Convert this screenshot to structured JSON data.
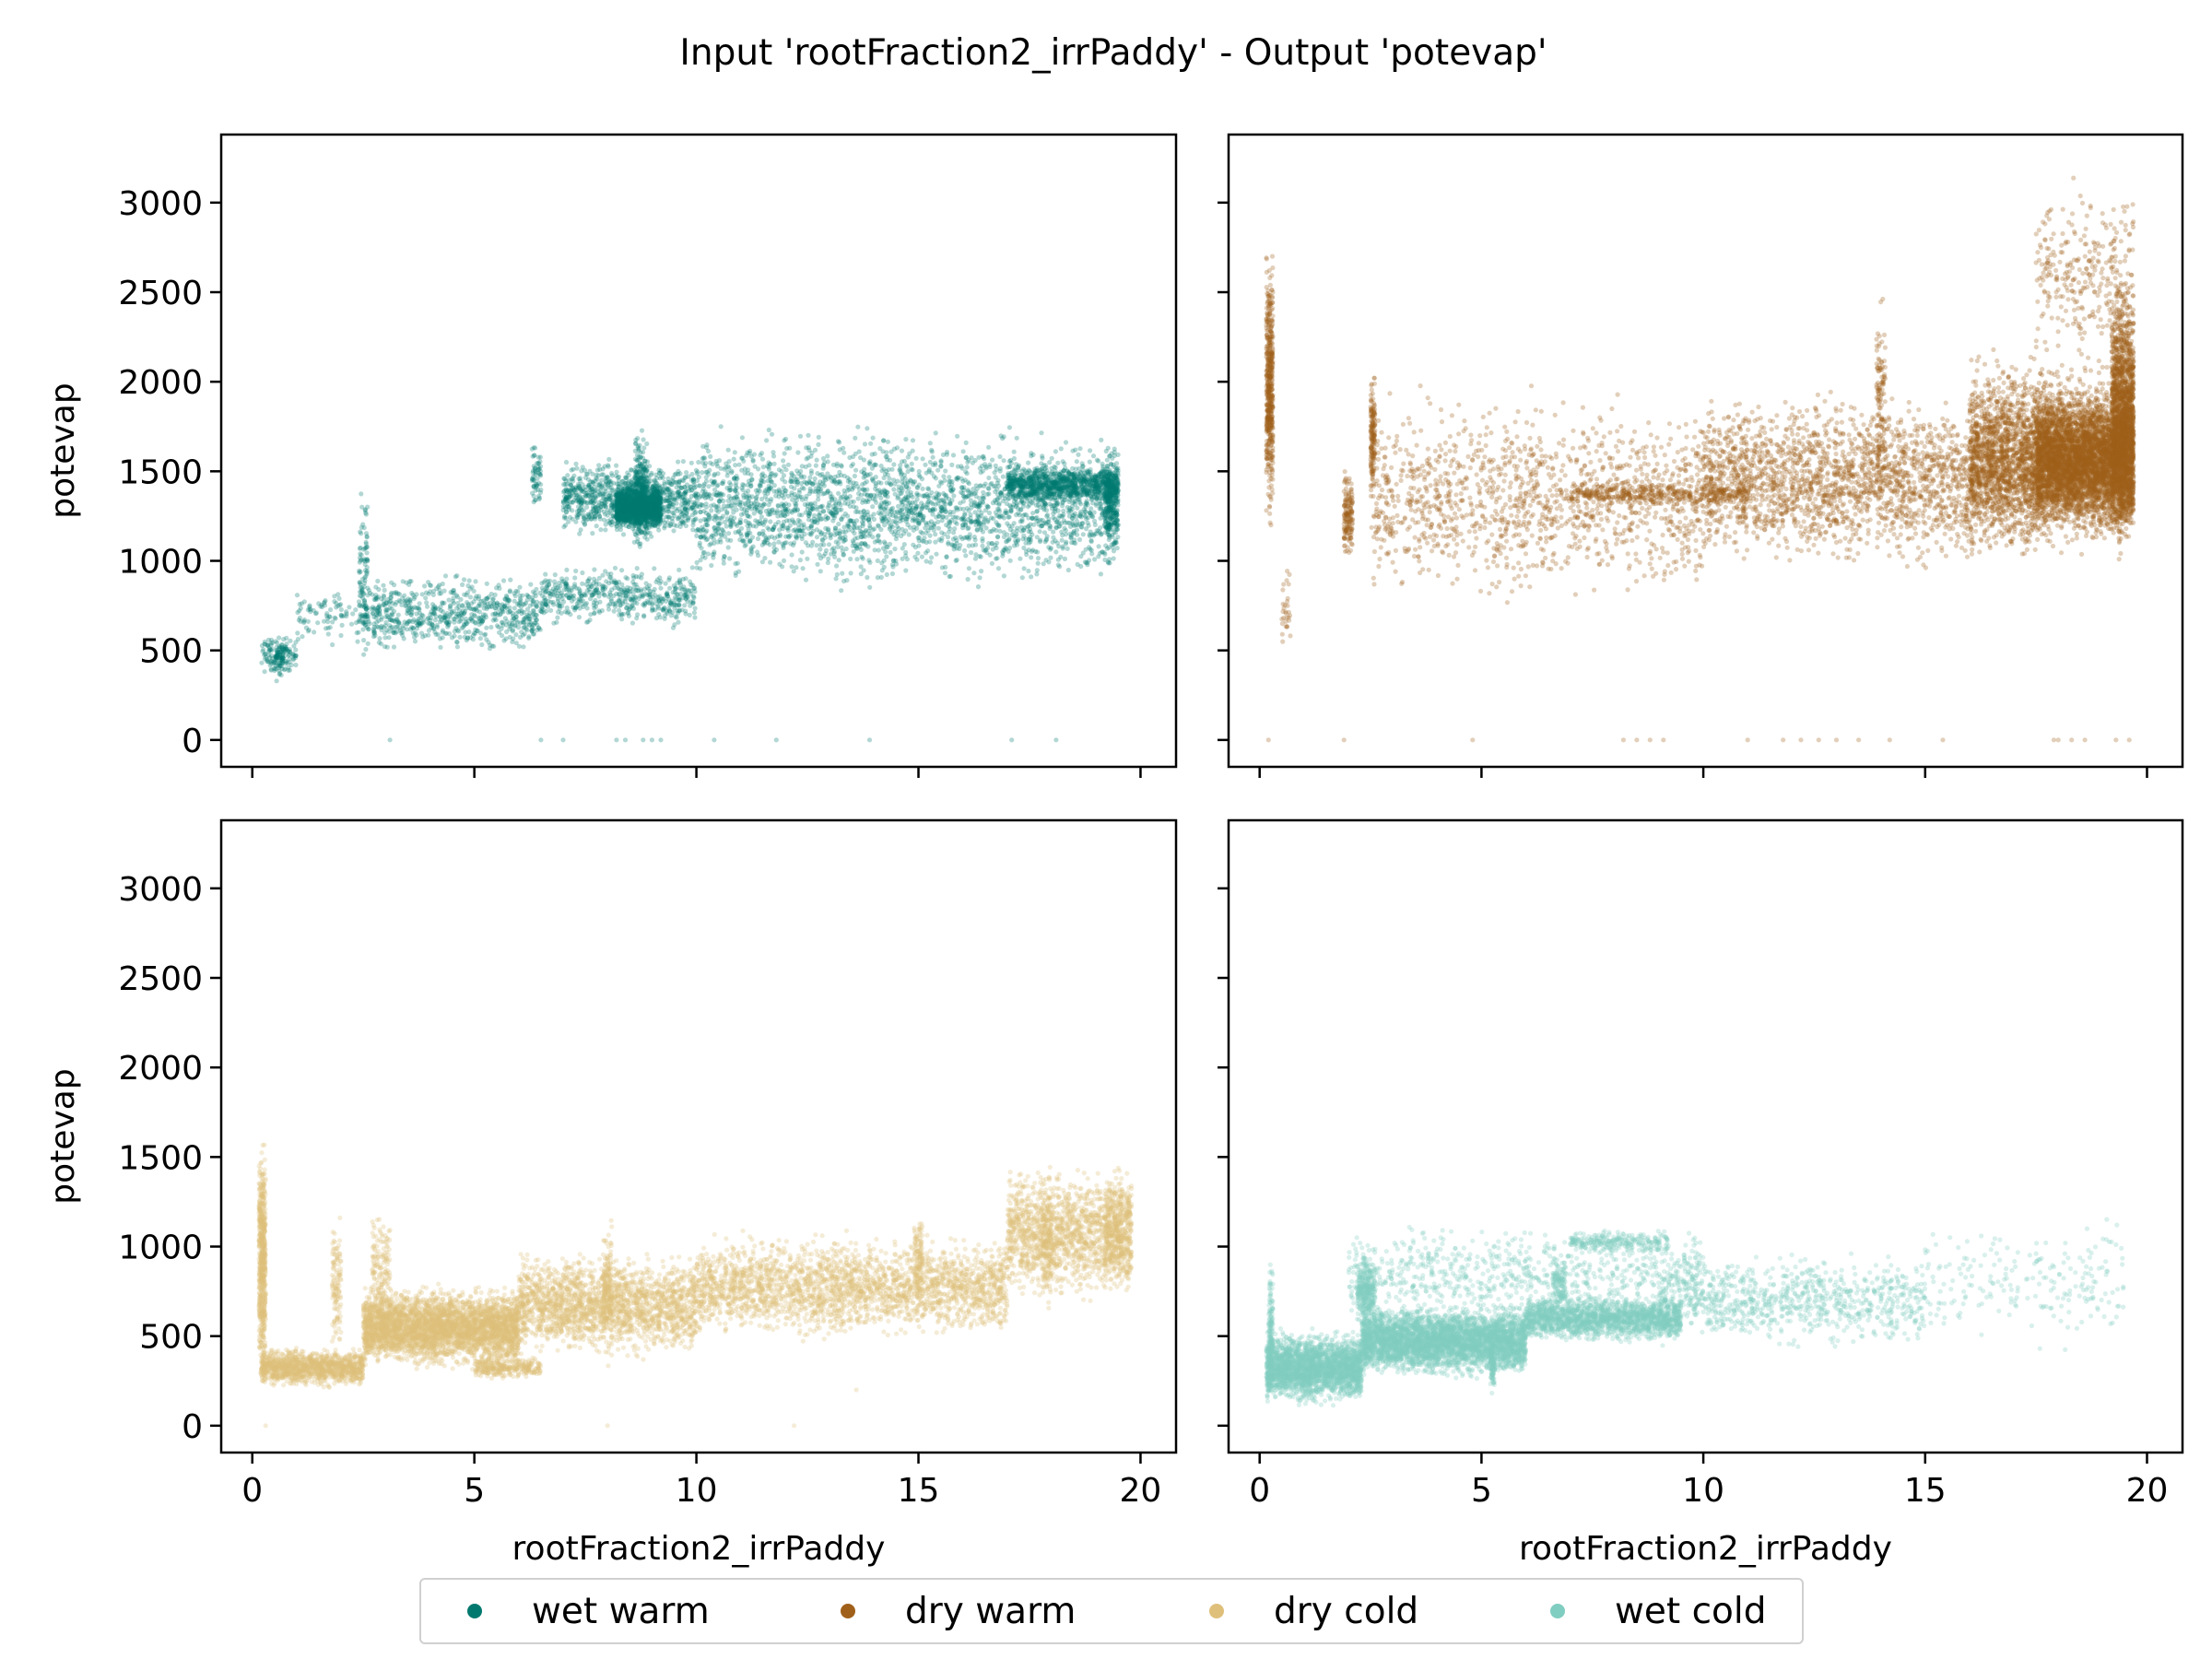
{
  "figure": {
    "title": "Input 'rootFraction2_irrPaddy' - Output 'potevap'"
  },
  "legend": [
    {
      "label": "wet warm",
      "color": "#01796f"
    },
    {
      "label": "dry warm",
      "color": "#a0601a"
    },
    {
      "label": "dry cold",
      "color": "#dfc07a"
    },
    {
      "label": "wet cold",
      "color": "#80cdc1"
    }
  ],
  "chart_data": [
    {
      "type": "scatter",
      "panel": "top-left",
      "series": [
        {
          "name": "wet warm",
          "color": "#01796f"
        }
      ],
      "xlabel": "",
      "ylabel": "potevap",
      "xlim": [
        -0.7,
        20.8
      ],
      "ylim": [
        -150,
        3380
      ],
      "xticks": [
        0,
        5,
        10,
        15,
        20
      ],
      "xtick_labels_visible": false,
      "yticks": [
        0,
        500,
        1000,
        1500,
        2000,
        2500,
        3000
      ],
      "ytick_labels": [
        "0",
        "500",
        "1000",
        "1500",
        "2000",
        "2500",
        "3000"
      ],
      "clusters": [
        {
          "x": [
            0.2,
            1.0
          ],
          "y": [
            350,
            600
          ],
          "n": 120
        },
        {
          "x": [
            0.5,
            0.7
          ],
          "y": [
            300,
            600
          ],
          "n": 60
        },
        {
          "x": [
            1.0,
            2.5
          ],
          "y": [
            500,
            900
          ],
          "n": 90
        },
        {
          "x": [
            2.4,
            2.6
          ],
          "y": [
            400,
            1500
          ],
          "n": 90
        },
        {
          "x": [
            2.5,
            6.5
          ],
          "y": [
            450,
            950
          ],
          "n": 700
        },
        {
          "x": [
            6.3,
            6.5
          ],
          "y": [
            1200,
            1800
          ],
          "n": 60
        },
        {
          "x": [
            6.5,
            10.0
          ],
          "y": [
            600,
            1000
          ],
          "n": 500
        },
        {
          "x": [
            7.0,
            10.0
          ],
          "y": [
            1100,
            1600
          ],
          "n": 900
        },
        {
          "x": [
            8.2,
            9.2
          ],
          "y": [
            1150,
            1450
          ],
          "n": 1500
        },
        {
          "x": [
            8.6,
            8.9
          ],
          "y": [
            1000,
            1800
          ],
          "n": 250
        },
        {
          "x": [
            10.0,
            19.5
          ],
          "y": [
            800,
            1800
          ],
          "n": 2600
        },
        {
          "x": [
            17.0,
            19.5
          ],
          "y": [
            1300,
            1550
          ],
          "n": 900
        },
        {
          "x": [
            19.2,
            19.5
          ],
          "y": [
            1000,
            1650
          ],
          "n": 250
        }
      ],
      "points": [
        [
          3.1,
          0
        ],
        [
          6.5,
          0
        ],
        [
          7.0,
          0
        ],
        [
          8.2,
          0
        ],
        [
          8.4,
          0
        ],
        [
          8.8,
          0
        ],
        [
          9.0,
          0
        ],
        [
          9.2,
          0
        ],
        [
          10.4,
          0
        ],
        [
          11.8,
          0
        ],
        [
          13.9,
          0
        ],
        [
          17.1,
          0
        ],
        [
          18.1,
          0
        ]
      ]
    },
    {
      "type": "scatter",
      "panel": "top-right",
      "series": [
        {
          "name": "dry warm",
          "color": "#a0601a"
        }
      ],
      "xlabel": "",
      "ylabel": "",
      "xlim": [
        -0.7,
        20.8
      ],
      "ylim": [
        -150,
        3380
      ],
      "xticks": [
        0,
        5,
        10,
        15,
        20
      ],
      "xtick_labels_visible": false,
      "yticks": [
        0,
        500,
        1000,
        1500,
        2000,
        2500,
        3000
      ],
      "ytick_labels_visible": false,
      "clusters": [
        {
          "x": [
            0.15,
            0.3
          ],
          "y": [
            1150,
            2800
          ],
          "n": 500
        },
        {
          "x": [
            0.5,
            0.7
          ],
          "y": [
            400,
            1100
          ],
          "n": 30
        },
        {
          "x": [
            1.9,
            2.1
          ],
          "y": [
            950,
            1550
          ],
          "n": 150
        },
        {
          "x": [
            2.5,
            2.6
          ],
          "y": [
            1300,
            2100
          ],
          "n": 150
        },
        {
          "x": [
            2.5,
            10.0
          ],
          "y": [
            700,
            2000
          ],
          "n": 1300
        },
        {
          "x": [
            7.0,
            11.0
          ],
          "y": [
            1300,
            1450
          ],
          "n": 400
        },
        {
          "x": [
            10.0,
            17.5
          ],
          "y": [
            900,
            2000
          ],
          "n": 2500
        },
        {
          "x": [
            13.9,
            14.1
          ],
          "y": [
            1200,
            2550
          ],
          "n": 120
        },
        {
          "x": [
            16.0,
            19.6
          ],
          "y": [
            1000,
            2200
          ],
          "n": 3000
        },
        {
          "x": [
            17.5,
            19.7
          ],
          "y": [
            1100,
            2000
          ],
          "n": 3500
        },
        {
          "x": [
            19.2,
            19.7
          ],
          "y": [
            950,
            2700
          ],
          "n": 1500
        },
        {
          "x": [
            17.5,
            19.7
          ],
          "y": [
            2000,
            3200
          ],
          "n": 300
        }
      ],
      "points": [
        [
          0.2,
          0
        ],
        [
          1.9,
          0
        ],
        [
          4.8,
          0
        ],
        [
          8.2,
          0
        ],
        [
          8.5,
          0
        ],
        [
          8.8,
          0
        ],
        [
          9.1,
          0
        ],
        [
          11.0,
          0
        ],
        [
          11.8,
          0
        ],
        [
          12.2,
          0
        ],
        [
          12.6,
          0
        ],
        [
          13.0,
          0
        ],
        [
          13.5,
          0
        ],
        [
          14.2,
          0
        ],
        [
          15.4,
          0
        ],
        [
          17.9,
          0
        ],
        [
          18.0,
          0
        ],
        [
          18.3,
          0
        ],
        [
          18.6,
          0
        ],
        [
          19.3,
          0
        ],
        [
          19.6,
          0
        ]
      ]
    },
    {
      "type": "scatter",
      "panel": "bottom-left",
      "series": [
        {
          "name": "dry cold",
          "color": "#dfc07a"
        }
      ],
      "xlabel": "rootFraction2_irrPaddy",
      "ylabel": "potevap",
      "xlim": [
        -0.7,
        20.8
      ],
      "ylim": [
        -150,
        3380
      ],
      "xticks": [
        0,
        5,
        10,
        15,
        20
      ],
      "xtick_labels": [
        "0",
        "5",
        "10",
        "15",
        "20"
      ],
      "yticks": [
        0,
        500,
        1000,
        1500,
        2000,
        2500,
        3000
      ],
      "ytick_labels": [
        "0",
        "500",
        "1000",
        "1500",
        "2000",
        "2500",
        "3000"
      ],
      "clusters": [
        {
          "x": [
            0.15,
            0.3
          ],
          "y": [
            150,
            1700
          ],
          "n": 600
        },
        {
          "x": [
            0.2,
            2.5
          ],
          "y": [
            200,
            450
          ],
          "n": 1200
        },
        {
          "x": [
            1.8,
            2.0
          ],
          "y": [
            300,
            1250
          ],
          "n": 120
        },
        {
          "x": [
            2.5,
            6.0
          ],
          "y": [
            300,
            800
          ],
          "n": 3500
        },
        {
          "x": [
            2.7,
            3.1
          ],
          "y": [
            300,
            1300
          ],
          "n": 200
        },
        {
          "x": [
            5.0,
            6.5
          ],
          "y": [
            250,
            400
          ],
          "n": 300
        },
        {
          "x": [
            6.0,
            10.0
          ],
          "y": [
            350,
            1000
          ],
          "n": 2000
        },
        {
          "x": [
            7.9,
            8.1
          ],
          "y": [
            300,
            1200
          ],
          "n": 150
        },
        {
          "x": [
            10.0,
            17.0
          ],
          "y": [
            450,
            1100
          ],
          "n": 2500
        },
        {
          "x": [
            14.9,
            15.1
          ],
          "y": [
            600,
            1250
          ],
          "n": 120
        },
        {
          "x": [
            17.0,
            19.8
          ],
          "y": [
            650,
            1500
          ],
          "n": 1500
        },
        {
          "x": [
            17.8,
            18.0
          ],
          "y": [
            600,
            1400
          ],
          "n": 120
        },
        {
          "x": [
            19.2,
            19.8
          ],
          "y": [
            700,
            1500
          ],
          "n": 300
        }
      ],
      "points": [
        [
          0.3,
          0
        ],
        [
          8.0,
          0
        ],
        [
          12.2,
          0
        ],
        [
          13.6,
          200
        ]
      ]
    },
    {
      "type": "scatter",
      "panel": "bottom-right",
      "series": [
        {
          "name": "wet cold",
          "color": "#80cdc1"
        }
      ],
      "xlabel": "rootFraction2_irrPaddy",
      "ylabel": "",
      "xlim": [
        -0.7,
        20.8
      ],
      "ylim": [
        -150,
        3380
      ],
      "xticks": [
        0,
        5,
        10,
        15,
        20
      ],
      "xtick_labels": [
        "0",
        "5",
        "10",
        "15",
        "20"
      ],
      "yticks": [
        0,
        500,
        1000,
        1500,
        2000,
        2500,
        3000
      ],
      "ytick_labels_visible": false,
      "clusters": [
        {
          "x": [
            0.15,
            2.3
          ],
          "y": [
            100,
            550
          ],
          "n": 2500
        },
        {
          "x": [
            0.2,
            0.3
          ],
          "y": [
            100,
            950
          ],
          "n": 150
        },
        {
          "x": [
            2.2,
            2.6
          ],
          "y": [
            500,
            1000
          ],
          "n": 300
        },
        {
          "x": [
            2.3,
            6.0
          ],
          "y": [
            250,
            700
          ],
          "n": 4000
        },
        {
          "x": [
            5.2,
            5.3
          ],
          "y": [
            150,
            500
          ],
          "n": 80
        },
        {
          "x": [
            2.0,
            10.0
          ],
          "y": [
            550,
            1150
          ],
          "n": 800
        },
        {
          "x": [
            6.0,
            9.5
          ],
          "y": [
            450,
            750
          ],
          "n": 1800
        },
        {
          "x": [
            6.6,
            6.9
          ],
          "y": [
            600,
            950
          ],
          "n": 120
        },
        {
          "x": [
            7.0,
            9.2
          ],
          "y": [
            950,
            1100
          ],
          "n": 250
        },
        {
          "x": [
            9.0,
            15.0
          ],
          "y": [
            400,
            1000
          ],
          "n": 900
        },
        {
          "x": [
            15.0,
            19.5
          ],
          "y": [
            400,
            1200
          ],
          "n": 220
        }
      ],
      "points": []
    }
  ]
}
